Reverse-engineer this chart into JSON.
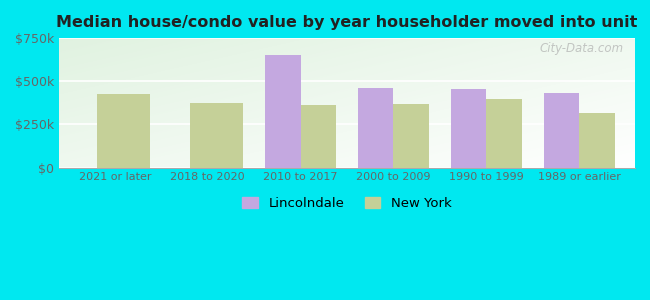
{
  "title": "Median house/condo value by year householder moved into unit",
  "categories": [
    "2021 or later",
    "2018 to 2020",
    "2010 to 2017",
    "2000 to 2009",
    "1990 to 1999",
    "1989 or earlier"
  ],
  "lincolndale": [
    0,
    0,
    650000,
    460000,
    455000,
    430000
  ],
  "new_york": [
    425000,
    375000,
    365000,
    370000,
    400000,
    315000
  ],
  "lincolndale_color": "#c4a8e0",
  "new_york_color": "#c5d098",
  "background_outer": "#00e8f0",
  "ylim": [
    0,
    750000
  ],
  "yticks": [
    0,
    250000,
    500000,
    750000
  ],
  "ytick_labels": [
    "$0",
    "$250k",
    "$500k",
    "$750k"
  ],
  "bar_width": 0.38,
  "legend_labels": [
    "Lincolndale",
    "New York"
  ],
  "watermark": "City-Data.com"
}
